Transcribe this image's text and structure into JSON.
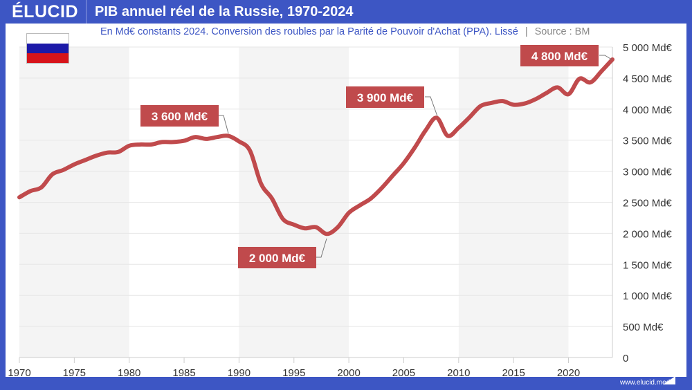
{
  "header": {
    "logo": "ÉLUCID",
    "title": "PIB annuel réel de la Russie, 1970-2024"
  },
  "subtitle": {
    "text": "En Md€ constants 2024. Conversion des roubles par la Parité de Pouvoir d'Achat (PPA). Lissé",
    "separator": "|",
    "source": "Source : BM"
  },
  "flag": {
    "country": "Russie",
    "colors": [
      "#ffffff",
      "#1c1aa8",
      "#d7141a"
    ]
  },
  "footer": {
    "url": "www.elucid.media"
  },
  "colors": {
    "frame": "#3d56c4",
    "line": "#c04a4c",
    "band": "#f4f4f4"
  },
  "chart_data": {
    "type": "line",
    "title": "PIB annuel réel de la Russie, 1970-2024",
    "xlim": [
      1970,
      2024
    ],
    "ylim": [
      0,
      5000
    ],
    "grid": true,
    "shaded_bands": [
      [
        1970,
        1980
      ],
      [
        1990,
        2000
      ],
      [
        2010,
        2020
      ]
    ],
    "x_ticks": [
      "1970",
      "1975",
      "1980",
      "1985",
      "1990",
      "1995",
      "2000",
      "2005",
      "2010",
      "2015",
      "2020"
    ],
    "y_ticks": [
      "0",
      "500 Md€",
      "1 000 Md€",
      "1 500 Md€",
      "2 000 Md€",
      "2 500 Md€",
      "3 000 Md€",
      "3 500 Md€",
      "4 000 Md€",
      "4 500 Md€",
      "5 000 Md€"
    ],
    "x": [
      1970,
      1971,
      1972,
      1973,
      1974,
      1975,
      1976,
      1977,
      1978,
      1979,
      1980,
      1981,
      1982,
      1983,
      1984,
      1985,
      1986,
      1987,
      1988,
      1989,
      1990,
      1991,
      1992,
      1993,
      1994,
      1995,
      1996,
      1997,
      1998,
      1999,
      2000,
      2001,
      2002,
      2003,
      2004,
      2005,
      2006,
      2007,
      2008,
      2009,
      2010,
      2011,
      2012,
      2013,
      2014,
      2015,
      2016,
      2017,
      2018,
      2019,
      2020,
      2021,
      2022,
      2023,
      2024
    ],
    "values": [
      2580,
      2680,
      2740,
      2950,
      3020,
      3110,
      3180,
      3250,
      3300,
      3310,
      3410,
      3430,
      3430,
      3470,
      3470,
      3490,
      3550,
      3520,
      3550,
      3570,
      3480,
      3330,
      2800,
      2560,
      2230,
      2140,
      2080,
      2100,
      1990,
      2100,
      2330,
      2450,
      2560,
      2730,
      2930,
      3130,
      3380,
      3660,
      3860,
      3570,
      3700,
      3870,
      4050,
      4100,
      4130,
      4070,
      4090,
      4160,
      4260,
      4350,
      4240,
      4490,
      4430,
      4610,
      4800
    ],
    "annotations": [
      {
        "label": "3 600 Md€",
        "x": 1989,
        "y": 3570
      },
      {
        "label": "2 000 Md€",
        "x": 1998,
        "y": 1990
      },
      {
        "label": "3 900 Md€",
        "x": 2008,
        "y": 3860
      },
      {
        "label": "4 800 Md€",
        "x": 2024,
        "y": 4800
      }
    ]
  }
}
